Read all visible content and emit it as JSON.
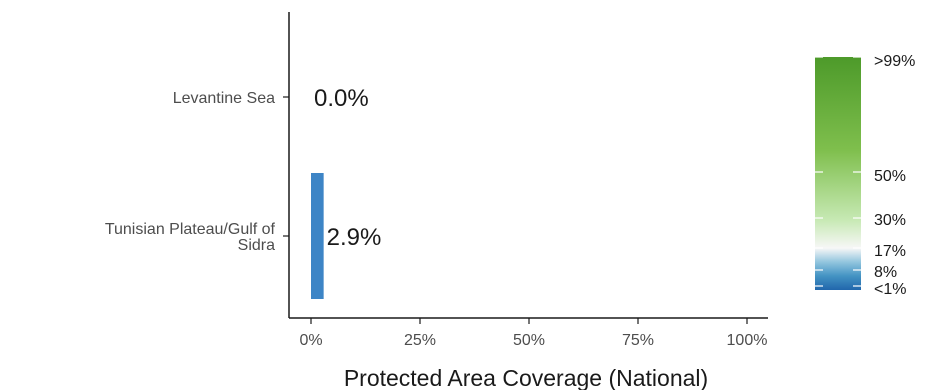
{
  "chart_data": {
    "type": "bar",
    "orientation": "horizontal",
    "categories": [
      "Levantine Sea",
      "Tunisian Plateau/Gulf of Sidra"
    ],
    "category_lines": [
      [
        "Levantine Sea"
      ],
      [
        "Tunisian Plateau/Gulf of",
        "Sidra"
      ]
    ],
    "values": [
      0.0,
      2.9
    ],
    "value_labels": [
      "0.0%",
      "2.9%"
    ],
    "bar_color": "#3d85c6",
    "xlabel": "Protected Area Coverage (National)",
    "ylabel": "",
    "xlim": [
      0,
      100
    ],
    "xticks": [
      0,
      25,
      50,
      75,
      100
    ],
    "xtick_labels": [
      "0%",
      "25%",
      "50%",
      "75%",
      "100%"
    ],
    "grid": false,
    "legend": {
      "type": "colorbar",
      "placement": "right",
      "labels": [
        ">99%",
        "50%",
        "30%",
        "17%",
        "8%",
        "<1%"
      ],
      "colors": [
        "#2166ac",
        "#4393c3",
        "#92c5de",
        "#f7f7f7",
        "#c7e9b4",
        "#7fbf4d",
        "#4d9a2a"
      ]
    }
  }
}
